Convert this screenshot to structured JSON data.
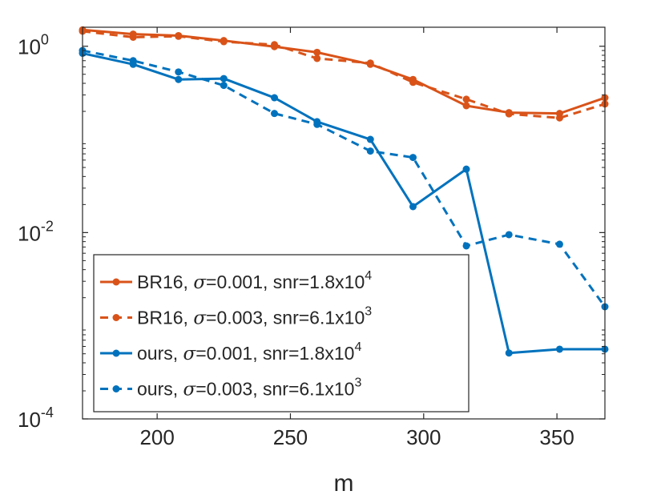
{
  "chart_data": {
    "type": "line",
    "xlabel": "m",
    "ylabel": "",
    "xlim": [
      172,
      368
    ],
    "ylim": [
      0.0001,
      1.6
    ],
    "yscale": "log",
    "grid": false,
    "xticks": [
      200,
      250,
      300,
      350
    ],
    "xtick_labels": [
      "200",
      "250",
      "300",
      "350"
    ],
    "yticks": [
      {
        "value": 1,
        "base": "10",
        "exp": "0"
      },
      {
        "value": 0.01,
        "base": "10",
        "exp": "-2"
      },
      {
        "value": 0.0001,
        "base": "10",
        "exp": "-4"
      }
    ],
    "legend_position": "bottom-left",
    "series": [
      {
        "name": "BR16, σ=0.001, snr=1.8x10^4",
        "legend": {
          "method": "BR16, ",
          "sigma_symbol": "σ",
          "sigma_value": "=0.001, snr=1.8x10",
          "exp": "4"
        },
        "color": "#D95319",
        "dash": "solid",
        "x": [
          172,
          191,
          208,
          225,
          244,
          260,
          280,
          296,
          316,
          332,
          351,
          368
        ],
        "y": [
          1.5,
          1.35,
          1.3,
          1.15,
          0.99,
          0.86,
          0.64,
          0.44,
          0.23,
          0.194,
          0.19,
          0.28
        ]
      },
      {
        "name": "BR16, σ=0.003, snr=6.1x10^3",
        "legend": {
          "method": "BR16, ",
          "sigma_symbol": "σ",
          "sigma_value": "=0.003, snr=6.1x10",
          "exp": "3"
        },
        "color": "#D95319",
        "dash": "dashed",
        "x": [
          172,
          191,
          208,
          225,
          244,
          260,
          280,
          296,
          316,
          332,
          351,
          368
        ],
        "y": [
          1.45,
          1.25,
          1.28,
          1.12,
          1.04,
          0.74,
          0.66,
          0.41,
          0.27,
          0.188,
          0.17,
          0.24
        ]
      },
      {
        "name": "ours, σ=0.001, snr=1.8x10^4",
        "legend": {
          "method": "ours, ",
          "sigma_symbol": "σ",
          "sigma_value": "=0.001, snr=1.8x10",
          "exp": "4"
        },
        "color": "#0072BD",
        "dash": "solid",
        "x": [
          172,
          191,
          208,
          225,
          244,
          260,
          280,
          296,
          316,
          332,
          351,
          368
        ],
        "y": [
          0.84,
          0.64,
          0.44,
          0.45,
          0.28,
          0.155,
          0.1,
          0.019,
          0.048,
          0.00051,
          0.00056,
          0.00056
        ]
      },
      {
        "name": "ours, σ=0.003, snr=6.1x10^3",
        "legend": {
          "method": "ours, ",
          "sigma_symbol": "σ",
          "sigma_value": "=0.003, snr=6.1x10",
          "exp": "3"
        },
        "color": "#0072BD",
        "dash": "dashed",
        "x": [
          172,
          191,
          208,
          225,
          244,
          260,
          280,
          296,
          316,
          332,
          351,
          368
        ],
        "y": [
          0.9,
          0.7,
          0.53,
          0.38,
          0.19,
          0.145,
          0.075,
          0.064,
          0.0072,
          0.0095,
          0.0075,
          0.0016
        ]
      }
    ]
  }
}
